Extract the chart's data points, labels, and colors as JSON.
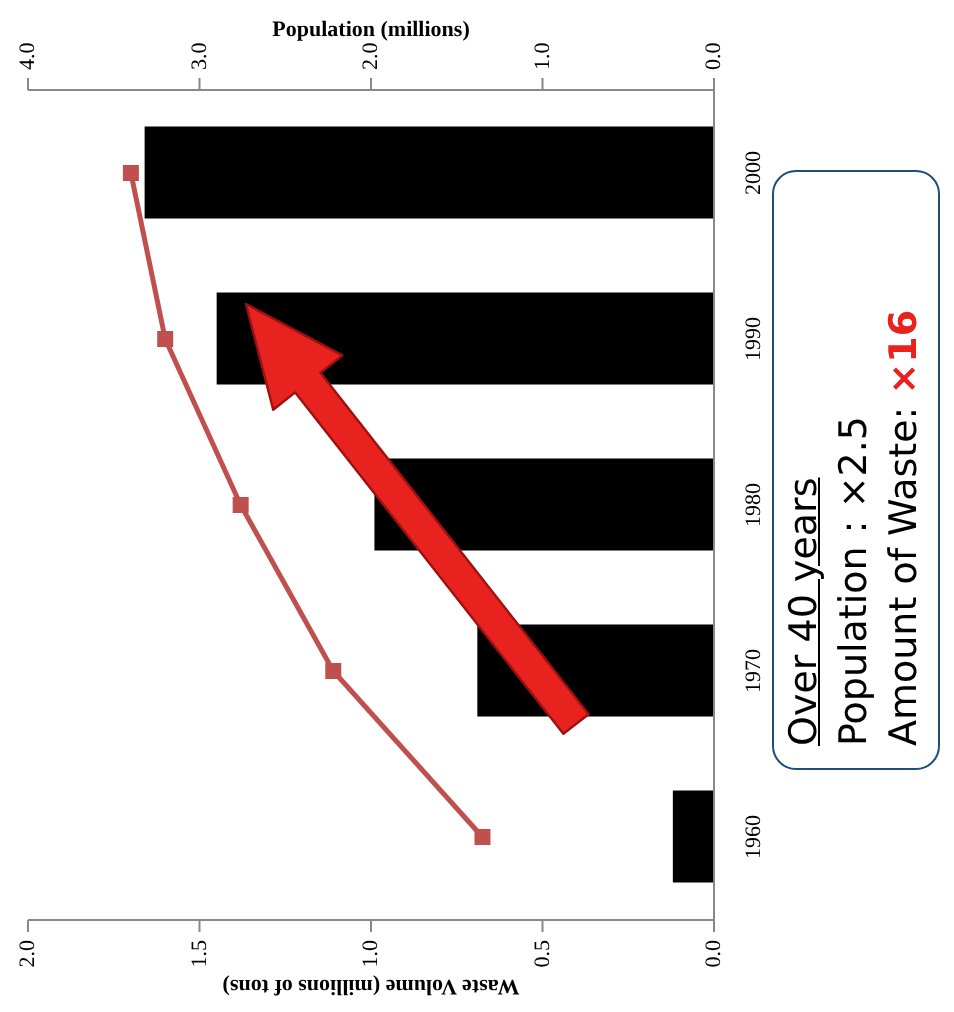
{
  "chart_data": {
    "type": "bar",
    "orientation": "horizontal",
    "categories": [
      "2000",
      "1990",
      "1980",
      "1970",
      "1960"
    ],
    "series": [
      {
        "color": "#000000",
        "values": [
          1.66,
          1.45,
          0.99,
          0.69,
          0.12
        ]
      },
      {
        "type": "line",
        "axis": "x2",
        "color": "#c0504d",
        "marker": "square",
        "values": [
          3.4,
          3.2,
          2.76,
          2.22,
          1.35
        ]
      }
    ],
    "xlabel": "Waste Volume (millions of tons)",
    "x2label": "Population (millions)",
    "xlim": [
      2,
      0
    ],
    "xticks": [
      {
        "value": 2,
        "label": "2.0"
      },
      {
        "value": 1.5,
        "label": "1.5"
      },
      {
        "value": 1,
        "label": "1.0"
      },
      {
        "value": 0.5,
        "label": "0.5"
      },
      {
        "value": 0,
        "label": "0.0"
      }
    ],
    "x2lim": [
      4,
      0
    ],
    "x2ticks": [
      {
        "value": 4,
        "label": "4.0"
      },
      {
        "value": 3,
        "label": "3.0"
      },
      {
        "value": 2,
        "label": "2.0"
      },
      {
        "value": 1,
        "label": "1.0"
      },
      {
        "value": 0,
        "label": "0.0"
      }
    ],
    "annotations": [
      "Over 40 years",
      "Population：×2.5",
      "Amount of Waste: ×16"
    ],
    "grid": false,
    "legend": false
  }
}
